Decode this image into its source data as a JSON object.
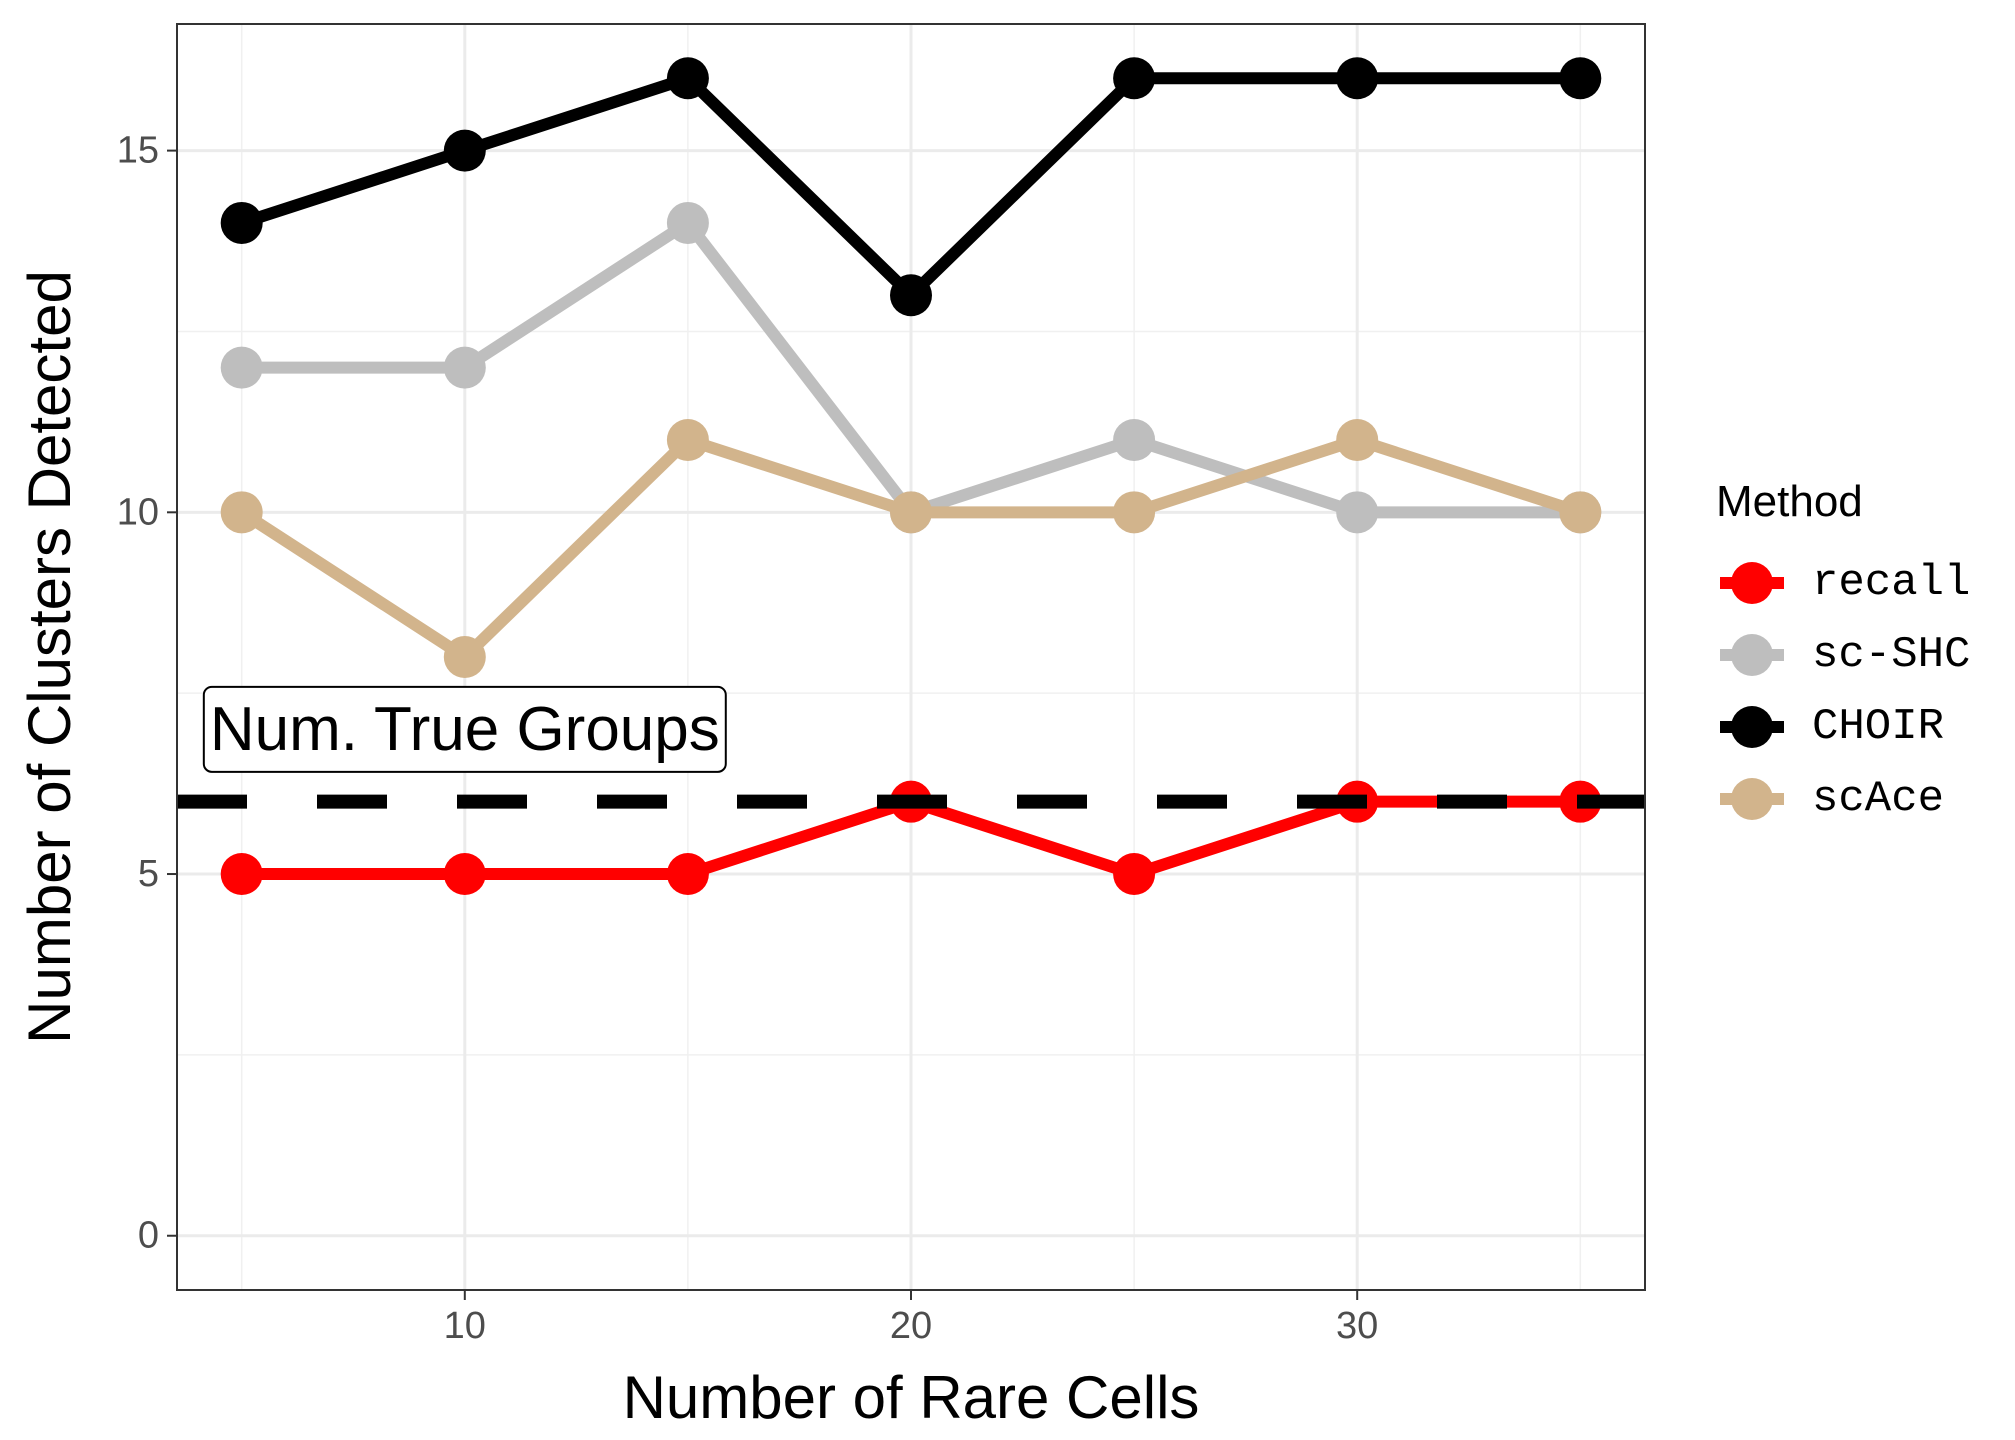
{
  "chart_data": {
    "type": "line",
    "xlabel": "Number of Rare Cells",
    "ylabel": "Number of Clusters Detected",
    "x": [
      5,
      10,
      15,
      20,
      25,
      30,
      35
    ],
    "xlim": [
      3.55,
      36.45
    ],
    "ylim": [
      -0.75,
      16.75
    ],
    "x_ticks": [
      10,
      20,
      30
    ],
    "y_ticks": [
      0,
      5,
      10,
      15
    ],
    "grid": true,
    "legend_title": "Method",
    "legend_position": "right",
    "series": [
      {
        "name": "recall",
        "color": "#ff0000",
        "values": [
          5,
          5,
          5,
          6,
          5,
          6,
          6
        ]
      },
      {
        "name": "sc-SHC",
        "color": "#bebebe",
        "values": [
          12,
          12,
          14,
          10,
          11,
          10,
          10
        ]
      },
      {
        "name": "CHOIR",
        "color": "#000000",
        "values": [
          14,
          15,
          16,
          13,
          16,
          16,
          16
        ]
      },
      {
        "name": "scAce",
        "color": "#d2b48c",
        "values": [
          10,
          8,
          11,
          10,
          10,
          11,
          10
        ]
      }
    ],
    "draw_order": [
      "sc-SHC",
      "scAce",
      "CHOIR",
      "recall"
    ],
    "reference_line": {
      "y": 6,
      "style": "dashed",
      "color": "#000000"
    },
    "annotation": {
      "text": "Num. True Groups",
      "x": 10,
      "y": 7
    }
  }
}
